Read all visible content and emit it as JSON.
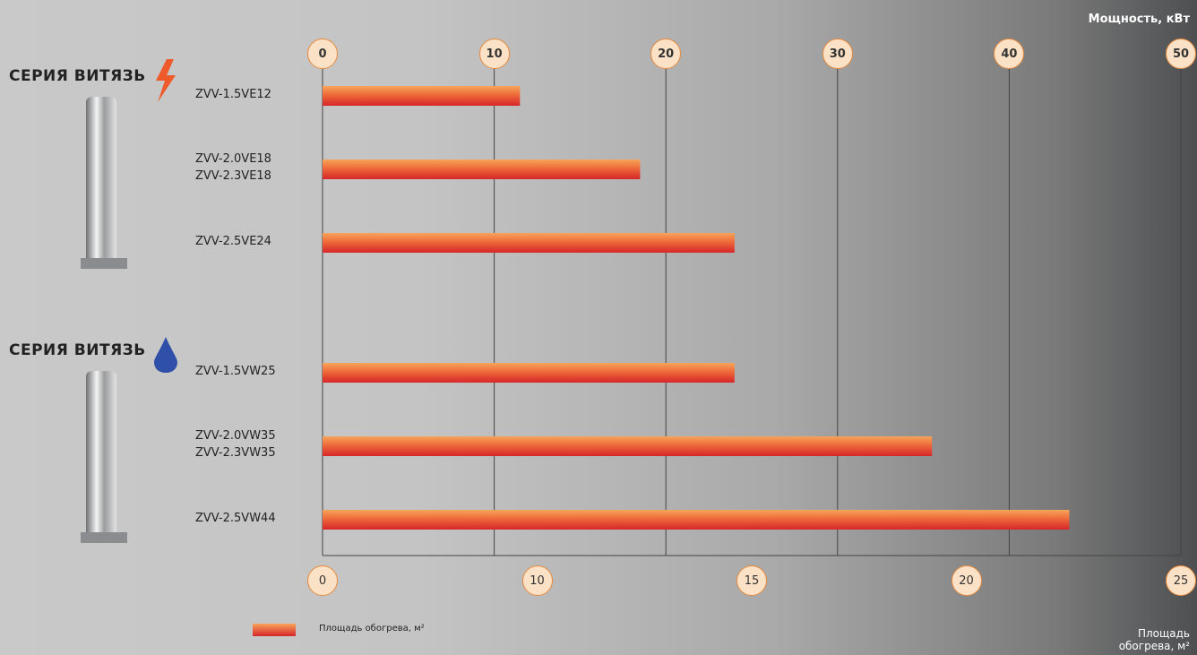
{
  "chart_data": {
    "type": "bar",
    "orientation": "horizontal",
    "x_label": "Мощность, кВт",
    "x2_label": "Площадь обогрева, м²",
    "groups": [
      "СЕРИЯ ВИТЯЗЬ",
      "СЕРИЯ ВИТЯЗЬ"
    ],
    "categories": [
      "ZVV-1.5VE12",
      "ZVV-2.0VE18\nZVV-2.3VE18",
      "ZVV-2.5VE24",
      "ZVV-1.5VW25",
      "ZVV-2.0VW35\nZVV-2.3VW35",
      "ZVV-2.5VW44"
    ],
    "series": [
      {
        "name": "Площадь обогрева, м²",
        "color": "#e8452a",
        "values": [
          11.5,
          18.5,
          24,
          24,
          35.5,
          43.5
        ]
      }
    ],
    "xlim": [
      0,
      50
    ],
    "xticks": [
      0,
      10,
      20,
      30,
      40,
      50
    ],
    "x2ticks": [
      0,
      10,
      15,
      20,
      25
    ],
    "grid": true
  }
}
